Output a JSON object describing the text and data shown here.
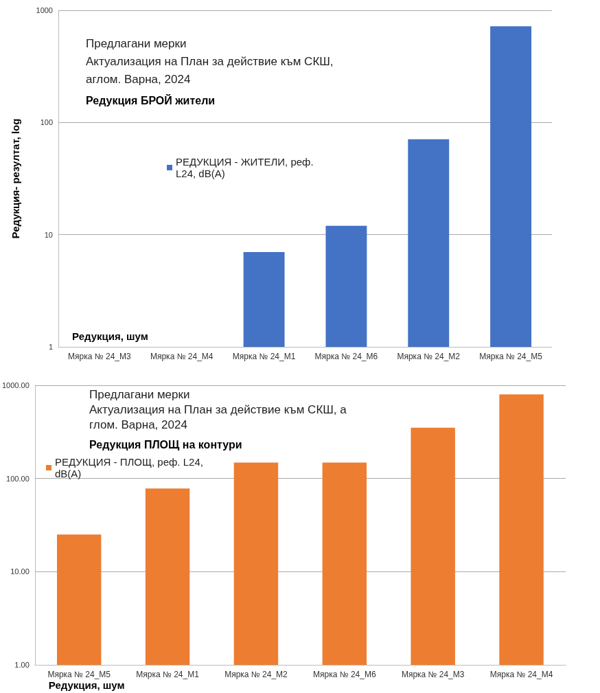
{
  "chart_data": [
    {
      "type": "bar",
      "title": "Предлагани мерки\nАктуализация на План за действие към СКШ,\nаглом. Варна, 2024",
      "subtitle": "Редукция БРОЙ жители",
      "xlabel": "Редукция, шум",
      "ylabel": "Редукция- резултат, log",
      "categories": [
        "Мярка № 24_М3",
        "Мярка № 24_М4",
        "Мярка № 24_М1",
        "Мярка № 24_М6",
        "Мярка № 24_М2",
        "Мярка № 24_М5"
      ],
      "series": [
        {
          "name": "РЕДУКЦИЯ - ЖИТЕЛИ, реф. L24, dB(A)",
          "color": "#4472c4",
          "values": [
            null,
            null,
            7,
            12,
            71,
            720
          ]
        }
      ],
      "log": "y",
      "ylim": [
        1,
        1000
      ],
      "yticks": [
        1,
        10,
        100,
        1000
      ],
      "grid": "y",
      "legend": "center"
    },
    {
      "type": "bar",
      "title": "Предлагани мерки\nАктуализация на План за действие към СКШ, а\nглом. Варна, 2024",
      "subtitle": "Редукция ПЛОЩ на контури",
      "xlabel": "Редукция, шум",
      "categories": [
        "Мярка № 24_М5",
        "Мярка № 24_М1",
        "Мярка № 24_М2",
        "Мярка № 24_М6",
        "Мярка № 24_М3",
        "Мярка № 24_М4"
      ],
      "series": [
        {
          "name": "РЕДУКЦИЯ - ПЛОЩ, реф. L24, dB(A)",
          "color": "#ed7d31",
          "values": [
            25,
            78,
            148,
            148,
            350,
            800
          ]
        }
      ],
      "log": "y",
      "ylim": [
        1,
        1000
      ],
      "yticks": [
        {
          "value": 1,
          "label": "1.00"
        },
        {
          "value": 10,
          "label": "10.00"
        },
        {
          "value": 100,
          "label": "100.00"
        },
        {
          "value": 1000,
          "label": "1000.00"
        }
      ],
      "grid": "y",
      "legend": "left"
    }
  ]
}
